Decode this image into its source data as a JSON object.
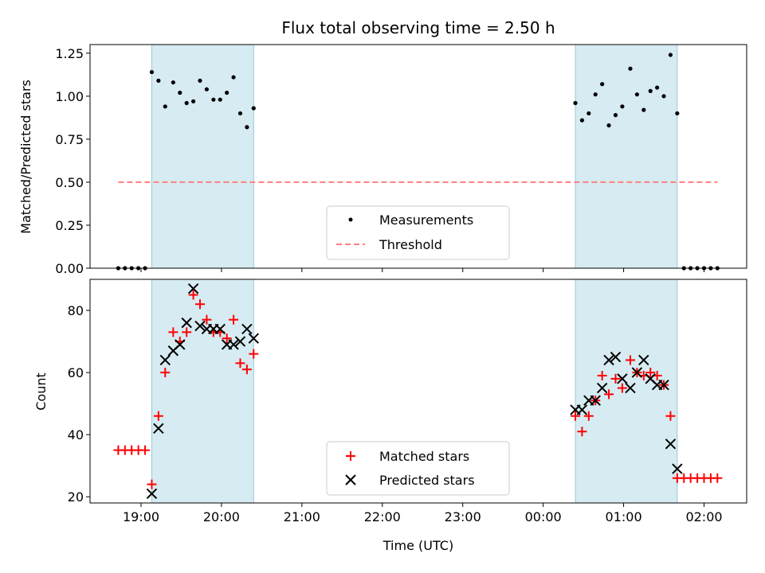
{
  "chart_data": [
    {
      "type": "scatter",
      "title": "Flux total observing time = 2.50 h",
      "ylabel": "Matched/Predicted stars",
      "xlabel": "",
      "ylim": [
        0,
        1.3
      ],
      "yticks": [
        "0.00",
        "0.25",
        "0.50",
        "0.75",
        "1.00",
        "1.25"
      ],
      "shaded_intervals": [
        [
          "19:08",
          "20:24"
        ],
        [
          "00:24",
          "01:40"
        ]
      ],
      "series": [
        {
          "name": "Measurements",
          "marker": "dot",
          "color": "#000000",
          "points": [
            [
              "18:43",
              0.0
            ],
            [
              "18:48",
              0.0
            ],
            [
              "18:53",
              0.0
            ],
            [
              "18:58",
              0.0
            ],
            [
              "19:03",
              0.0
            ],
            [
              "19:08",
              1.14
            ],
            [
              "19:13",
              1.09
            ],
            [
              "19:18",
              0.94
            ],
            [
              "19:24",
              1.08
            ],
            [
              "19:29",
              1.02
            ],
            [
              "19:34",
              0.96
            ],
            [
              "19:39",
              0.97
            ],
            [
              "19:44",
              1.09
            ],
            [
              "19:49",
              1.04
            ],
            [
              "19:54",
              0.98
            ],
            [
              "19:59",
              0.98
            ],
            [
              "20:04",
              1.02
            ],
            [
              "20:09",
              1.11
            ],
            [
              "20:14",
              0.9
            ],
            [
              "20:19",
              0.82
            ],
            [
              "20:24",
              0.93
            ],
            [
              "00:24",
              0.96
            ],
            [
              "00:29",
              0.86
            ],
            [
              "00:34",
              0.9
            ],
            [
              "00:39",
              1.01
            ],
            [
              "00:44",
              1.07
            ],
            [
              "00:49",
              0.83
            ],
            [
              "00:54",
              0.89
            ],
            [
              "00:59",
              0.94
            ],
            [
              "01:05",
              1.16
            ],
            [
              "01:10",
              1.01
            ],
            [
              "01:15",
              0.92
            ],
            [
              "01:20",
              1.03
            ],
            [
              "01:25",
              1.05
            ],
            [
              "01:30",
              1.0
            ],
            [
              "01:35",
              1.24
            ],
            [
              "01:40",
              0.9
            ],
            [
              "01:45",
              0.0
            ],
            [
              "01:50",
              0.0
            ],
            [
              "01:55",
              0.0
            ],
            [
              "02:00",
              0.0
            ],
            [
              "02:05",
              0.0
            ],
            [
              "02:10",
              0.0
            ]
          ]
        },
        {
          "name": "Threshold",
          "marker": "dashed-line",
          "color": "#ff7f7f",
          "points": [
            [
              "18:43",
              0.5
            ],
            [
              "02:10",
              0.5
            ]
          ]
        }
      ],
      "legend": "lower-center"
    },
    {
      "type": "scatter",
      "title": "",
      "ylabel": "Count",
      "xlabel": "Time (UTC)",
      "ylim": [
        18,
        90
      ],
      "yticks": [
        "20",
        "40",
        "60",
        "80"
      ],
      "xticks": [
        "19:00",
        "20:00",
        "21:00",
        "22:00",
        "23:00",
        "00:00",
        "01:00",
        "02:00"
      ],
      "shaded_intervals": [
        [
          "19:08",
          "20:24"
        ],
        [
          "00:24",
          "01:40"
        ]
      ],
      "series": [
        {
          "name": "Matched stars",
          "marker": "plus",
          "color": "#ff0000",
          "points": [
            [
              "18:43",
              35
            ],
            [
              "18:48",
              35
            ],
            [
              "18:53",
              35
            ],
            [
              "18:58",
              35
            ],
            [
              "19:03",
              35
            ],
            [
              "19:08",
              24
            ],
            [
              "19:13",
              46
            ],
            [
              "19:18",
              60
            ],
            [
              "19:24",
              73
            ],
            [
              "19:29",
              70
            ],
            [
              "19:34",
              73
            ],
            [
              "19:39",
              85
            ],
            [
              "19:44",
              82
            ],
            [
              "19:49",
              77
            ],
            [
              "19:54",
              73
            ],
            [
              "19:59",
              73
            ],
            [
              "20:04",
              71
            ],
            [
              "20:09",
              77
            ],
            [
              "20:14",
              63
            ],
            [
              "20:19",
              61
            ],
            [
              "20:24",
              66
            ],
            [
              "00:24",
              46
            ],
            [
              "00:29",
              41
            ],
            [
              "00:34",
              46
            ],
            [
              "00:39",
              51
            ],
            [
              "00:44",
              59
            ],
            [
              "00:49",
              53
            ],
            [
              "00:54",
              58
            ],
            [
              "00:59",
              55
            ],
            [
              "01:05",
              64
            ],
            [
              "01:10",
              60
            ],
            [
              "01:15",
              59
            ],
            [
              "01:20",
              60
            ],
            [
              "01:25",
              59
            ],
            [
              "01:30",
              56
            ],
            [
              "01:35",
              46
            ],
            [
              "01:40",
              26
            ],
            [
              "01:45",
              26
            ],
            [
              "01:50",
              26
            ],
            [
              "01:55",
              26
            ],
            [
              "02:00",
              26
            ],
            [
              "02:05",
              26
            ],
            [
              "02:10",
              26
            ]
          ]
        },
        {
          "name": "Predicted stars",
          "marker": "x",
          "color": "#000000",
          "points": [
            [
              "19:08",
              21
            ],
            [
              "19:13",
              42
            ],
            [
              "19:18",
              64
            ],
            [
              "19:24",
              67
            ],
            [
              "19:29",
              69
            ],
            [
              "19:34",
              76
            ],
            [
              "19:39",
              87
            ],
            [
              "19:44",
              75
            ],
            [
              "19:49",
              74
            ],
            [
              "19:54",
              74
            ],
            [
              "19:59",
              74
            ],
            [
              "20:04",
              69
            ],
            [
              "20:09",
              69
            ],
            [
              "20:14",
              70
            ],
            [
              "20:19",
              74
            ],
            [
              "20:24",
              71
            ],
            [
              "00:24",
              48
            ],
            [
              "00:29",
              48
            ],
            [
              "00:34",
              51
            ],
            [
              "00:39",
              51
            ],
            [
              "00:44",
              55
            ],
            [
              "00:49",
              64
            ],
            [
              "00:54",
              65
            ],
            [
              "00:59",
              58
            ],
            [
              "01:05",
              55
            ],
            [
              "01:10",
              60
            ],
            [
              "01:15",
              64
            ],
            [
              "01:20",
              58
            ],
            [
              "01:25",
              56
            ],
            [
              "01:30",
              56
            ],
            [
              "01:35",
              37
            ],
            [
              "01:40",
              29
            ]
          ]
        }
      ],
      "legend": "lower-center"
    }
  ]
}
